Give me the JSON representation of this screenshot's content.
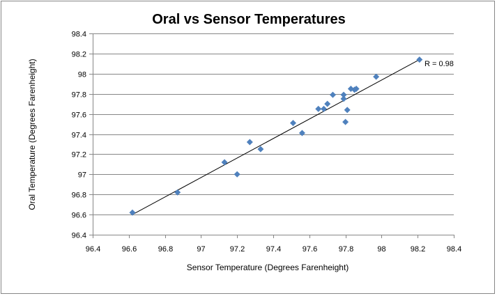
{
  "chart_data": {
    "type": "scatter",
    "title": "Oral vs Sensor Temperatures",
    "xlabel": "Sensor Temperature (Degrees Farenheight)",
    "ylabel": "Oral Temperature (Degrees Farenheight)",
    "xlim": [
      96.4,
      98.4
    ],
    "ylim": [
      96.4,
      98.4
    ],
    "x_ticks": [
      "96.4",
      "96.6",
      "96.8",
      "97",
      "97.2",
      "97.4",
      "97.6",
      "97.8",
      "98",
      "98.2",
      "98.4"
    ],
    "y_ticks": [
      "96.4",
      "96.6",
      "96.8",
      "97",
      "97.2",
      "97.4",
      "97.6",
      "97.8",
      "98",
      "98.2",
      "98.4"
    ],
    "grid": "horizontal major gridlines",
    "legend": "none",
    "marker_color": "#4F81BD",
    "series": [
      {
        "name": "Oral vs Sensor",
        "points": [
          {
            "x": 96.62,
            "y": 96.62
          },
          {
            "x": 96.87,
            "y": 96.82
          },
          {
            "x": 97.13,
            "y": 97.12
          },
          {
            "x": 97.2,
            "y": 97.0
          },
          {
            "x": 97.27,
            "y": 97.32
          },
          {
            "x": 97.33,
            "y": 97.25
          },
          {
            "x": 97.51,
            "y": 97.51
          },
          {
            "x": 97.56,
            "y": 97.41
          },
          {
            "x": 97.65,
            "y": 97.65
          },
          {
            "x": 97.68,
            "y": 97.65
          },
          {
            "x": 97.7,
            "y": 97.7
          },
          {
            "x": 97.73,
            "y": 97.79
          },
          {
            "x": 97.79,
            "y": 97.79
          },
          {
            "x": 97.79,
            "y": 97.75
          },
          {
            "x": 97.81,
            "y": 97.64
          },
          {
            "x": 97.8,
            "y": 97.52
          },
          {
            "x": 97.83,
            "y": 97.85
          },
          {
            "x": 97.85,
            "y": 97.84
          },
          {
            "x": 97.86,
            "y": 97.85
          },
          {
            "x": 97.97,
            "y": 97.97
          },
          {
            "x": 98.21,
            "y": 98.14
          }
        ]
      }
    ],
    "trendline": {
      "type": "linear",
      "from": {
        "x": 96.62,
        "y": 96.6
      },
      "to": {
        "x": 98.21,
        "y": 98.14
      },
      "color": "#000000"
    },
    "annotations": [
      {
        "text": "R = 0.98",
        "near": "trendline end, top-right"
      }
    ]
  }
}
